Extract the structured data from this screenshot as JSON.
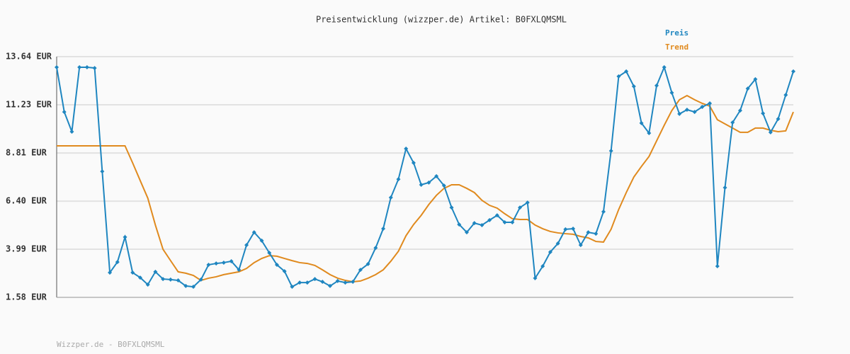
{
  "chart_data": {
    "type": "line",
    "title": "Preisentwicklung (wizzper.de) Artikel: B0FXLQMSML",
    "footer": "Wizzper.de - B0FXLQMSML",
    "ylim": [
      1.58,
      13.64
    ],
    "yticks": [
      {
        "value": 1.58,
        "label": "1.58 EUR"
      },
      {
        "value": 3.99,
        "label": "3.99 EUR"
      },
      {
        "value": 6.4,
        "label": "6.40 EUR"
      },
      {
        "value": 8.81,
        "label": "8.81 EUR"
      },
      {
        "value": 11.23,
        "label": "11.23 EUR"
      },
      {
        "value": 13.64,
        "label": "13.64 EUR"
      }
    ],
    "grid": true,
    "legend": "top-right",
    "series": [
      {
        "name": "Preis",
        "color": "#1f86c0",
        "markers": true,
        "values": [
          13.11,
          10.87,
          9.88,
          13.11,
          13.11,
          13.07,
          7.89,
          2.82,
          3.35,
          4.6,
          2.82,
          2.57,
          2.22,
          2.86,
          2.5,
          2.47,
          2.43,
          2.15,
          2.11,
          2.47,
          3.21,
          3.28,
          3.32,
          3.39,
          2.96,
          4.2,
          4.84,
          4.42,
          3.81,
          3.21,
          2.89,
          2.11,
          2.32,
          2.32,
          2.5,
          2.36,
          2.15,
          2.4,
          2.32,
          2.36,
          2.96,
          3.25,
          4.06,
          5.02,
          6.58,
          7.5,
          9.03,
          8.32,
          7.22,
          7.33,
          7.65,
          7.18,
          6.08,
          5.23,
          4.84,
          5.3,
          5.2,
          5.45,
          5.69,
          5.34,
          5.34,
          6.08,
          6.33,
          2.54,
          3.14,
          3.85,
          4.28,
          4.99,
          5.02,
          4.2,
          4.84,
          4.77,
          5.87,
          8.92,
          12.65,
          12.9,
          12.15,
          10.31,
          9.81,
          12.19,
          13.11,
          11.83,
          10.77,
          10.98,
          10.87,
          11.12,
          11.3,
          3.14,
          7.08,
          10.34,
          10.94,
          12.04,
          12.51,
          10.8,
          9.85,
          10.52,
          11.72,
          12.9
        ]
      },
      {
        "name": "Trend",
        "color": "#e08a1e",
        "markers": false,
        "values": [
          9.17,
          9.17,
          9.17,
          9.17,
          9.17,
          9.17,
          9.17,
          9.17,
          9.17,
          9.17,
          8.32,
          7.43,
          6.55,
          5.2,
          3.99,
          3.42,
          2.86,
          2.79,
          2.68,
          2.43,
          2.54,
          2.61,
          2.72,
          2.79,
          2.86,
          3.03,
          3.32,
          3.53,
          3.67,
          3.64,
          3.53,
          3.42,
          3.32,
          3.28,
          3.18,
          2.96,
          2.72,
          2.54,
          2.43,
          2.36,
          2.4,
          2.54,
          2.72,
          2.96,
          3.39,
          3.89,
          4.67,
          5.23,
          5.69,
          6.23,
          6.69,
          7.04,
          7.22,
          7.22,
          7.04,
          6.83,
          6.44,
          6.19,
          6.05,
          5.77,
          5.52,
          5.48,
          5.48,
          5.2,
          5.02,
          4.88,
          4.81,
          4.77,
          4.74,
          4.63,
          4.56,
          4.38,
          4.35,
          4.99,
          5.98,
          6.83,
          7.61,
          8.14,
          8.64,
          9.42,
          10.2,
          10.94,
          11.48,
          11.69,
          11.48,
          11.3,
          11.16,
          10.48,
          10.27,
          10.06,
          9.85,
          9.85,
          10.06,
          10.06,
          9.95,
          9.88,
          9.92,
          10.87
        ]
      }
    ]
  }
}
